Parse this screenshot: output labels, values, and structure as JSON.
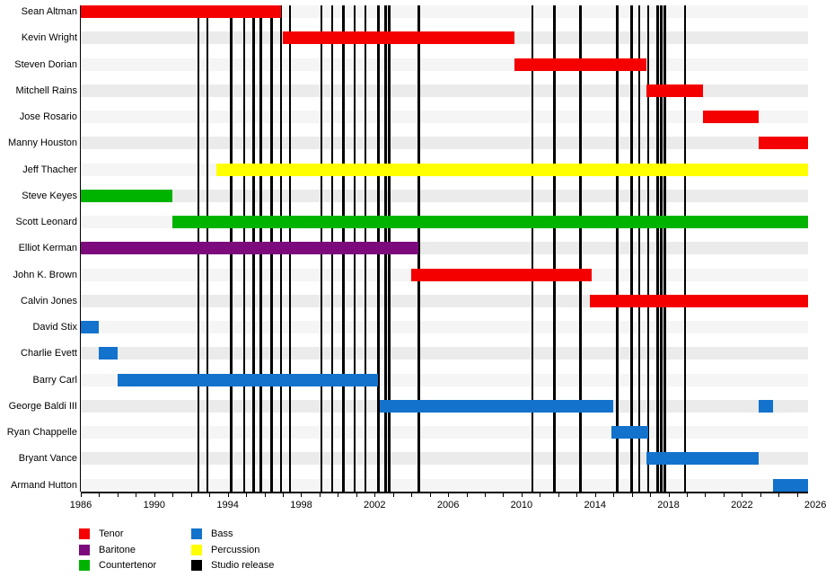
{
  "chart_data": {
    "type": "timeline",
    "description": "Band member tenure timeline with studio release markers",
    "x_axis": {
      "start": 1986,
      "end": 2025.6,
      "tick_interval": 1,
      "label_interval": 4,
      "tick_labels": [
        "1986",
        "1990",
        "1994",
        "1998",
        "2002",
        "2006",
        "2010",
        "2014",
        "2018",
        "2022",
        "2026"
      ]
    },
    "role_colors": {
      "Tenor": "#f40000",
      "Baritone": "#7c0a7c",
      "Countertenor": "#00b300",
      "Bass": "#1272cc",
      "Percussion": "#ffff00"
    },
    "release_color": "#000000",
    "rows": [
      {
        "name": "Sean Altman",
        "role": "Tenor",
        "periods": [
          [
            1986.0,
            1996.9
          ]
        ]
      },
      {
        "name": "Kevin Wright",
        "role": "Tenor",
        "periods": [
          [
            1997.0,
            2009.6
          ]
        ]
      },
      {
        "name": "Steven Dorian",
        "role": "Tenor",
        "periods": [
          [
            2009.6,
            2016.8
          ]
        ]
      },
      {
        "name": "Mitchell Rains",
        "role": "Tenor",
        "periods": [
          [
            2016.8,
            2019.9
          ]
        ]
      },
      {
        "name": "Jose Rosario",
        "role": "Tenor",
        "periods": [
          [
            2019.9,
            2022.9
          ]
        ]
      },
      {
        "name": "Manny Houston",
        "role": "Tenor",
        "periods": [
          [
            2022.9,
            2025.6
          ]
        ]
      },
      {
        "name": "Jeff Thacher",
        "role": "Percussion",
        "periods": [
          [
            1993.4,
            2025.6
          ]
        ]
      },
      {
        "name": "Steve Keyes",
        "role": "Countertenor",
        "periods": [
          [
            1986.0,
            1991.0
          ]
        ]
      },
      {
        "name": "Scott Leonard",
        "role": "Countertenor",
        "periods": [
          [
            1991.0,
            2025.6
          ]
        ]
      },
      {
        "name": "Elliot Kerman",
        "role": "Baritone",
        "periods": [
          [
            1986.0,
            2004.4
          ]
        ]
      },
      {
        "name": "John K. Brown",
        "role": "Tenor",
        "periods": [
          [
            2004.0,
            2013.8
          ]
        ]
      },
      {
        "name": "Calvin Jones",
        "role": "Tenor",
        "periods": [
          [
            2013.7,
            2025.6
          ]
        ]
      },
      {
        "name": "David Stix",
        "role": "Bass",
        "periods": [
          [
            1986.0,
            1987.0
          ]
        ]
      },
      {
        "name": "Charlie Evett",
        "role": "Bass",
        "periods": [
          [
            1987.0,
            1988.0
          ]
        ]
      },
      {
        "name": "Barry Carl",
        "role": "Bass",
        "periods": [
          [
            1988.0,
            2002.2
          ]
        ]
      },
      {
        "name": "George Baldi III",
        "role": "Bass",
        "periods": [
          [
            2002.3,
            2015.0
          ],
          [
            2022.9,
            2023.7
          ]
        ]
      },
      {
        "name": "Ryan Chappelle",
        "role": "Bass",
        "periods": [
          [
            2014.9,
            2016.9
          ]
        ]
      },
      {
        "name": "Bryant Vance",
        "role": "Bass",
        "periods": [
          [
            2016.8,
            2022.9
          ]
        ]
      },
      {
        "name": "Armand Hutton",
        "role": "Bass",
        "periods": [
          [
            2023.7,
            2025.6
          ]
        ]
      }
    ],
    "studio_releases": [
      1992.4,
      1992.9,
      1994.2,
      1994.9,
      1995.4,
      1995.8,
      1996.4,
      1996.9,
      1997.4,
      1999.1,
      1999.7,
      2000.3,
      2000.9,
      2001.5,
      2002.2,
      2002.6,
      2002.8,
      2004.4,
      2010.6,
      2011.8,
      2013.2,
      2015.2,
      2016.0,
      2016.4,
      2016.9,
      2017.4,
      2017.6,
      2017.8,
      2018.9
    ],
    "legend": [
      {
        "label": "Tenor",
        "color": "#f40000"
      },
      {
        "label": "Baritone",
        "color": "#7c0a7c"
      },
      {
        "label": "Countertenor",
        "color": "#00b300"
      },
      {
        "label": "Bass",
        "color": "#1272cc"
      },
      {
        "label": "Percussion",
        "color": "#ffff00"
      },
      {
        "label": "Studio release",
        "color": "#000000"
      }
    ]
  }
}
